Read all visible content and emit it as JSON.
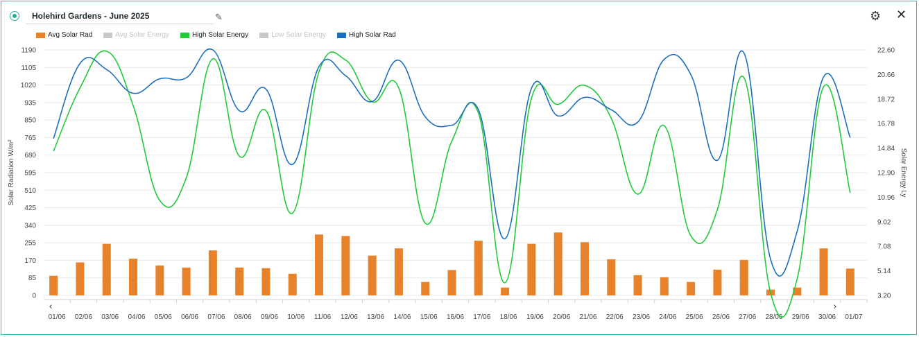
{
  "header": {
    "title": "Holehird Gardens - June 2025"
  },
  "icons": {
    "settings": "gear-icon",
    "close": "close-icon",
    "edit": "pencil-icon"
  },
  "colors": {
    "avg_solar_rad": "#e8822a",
    "high_solar_energy": "#22c93a",
    "high_solar_rad": "#1d6fbd",
    "disabled": "#c8c8c8",
    "frame": "#39b3b1"
  },
  "legend": [
    {
      "label": "Avg Solar Rad",
      "color": "#e8822a",
      "active": true
    },
    {
      "label": "Avg Solar Energy",
      "color": "#c8c8c8",
      "active": false
    },
    {
      "label": "High Solar Energy",
      "color": "#22c93a",
      "active": true
    },
    {
      "label": "Low Solar Energy",
      "color": "#c8c8c8",
      "active": false
    },
    {
      "label": "High Solar Rad",
      "color": "#1d6fbd",
      "active": true
    }
  ],
  "chart_data": {
    "type": "bar",
    "x": [
      "01/06",
      "02/06",
      "03/06",
      "04/06",
      "05/06",
      "06/06",
      "07/06",
      "08/06",
      "09/06",
      "10/06",
      "11/06",
      "12/06",
      "13/06",
      "14/06",
      "15/06",
      "16/06",
      "17/06",
      "18/06",
      "19/06",
      "20/06",
      "21/06",
      "22/06",
      "23/06",
      "24/06",
      "25/06",
      "26/06",
      "27/06",
      "28/06",
      "29/06",
      "30/06",
      "01/07"
    ],
    "ylabel_left": "Solar Radiation W/m²",
    "ylabel_right": "Solar Energy Ly",
    "left_ticks": [
      "0",
      "85",
      "170",
      "255",
      "340",
      "425",
      "510",
      "595",
      "680",
      "765",
      "850",
      "935",
      "1020",
      "1105",
      "1190"
    ],
    "right_ticks": [
      "3.20",
      "5.14",
      "7.08",
      "9.02",
      "10.96",
      "12.90",
      "14.84",
      "16.78",
      "18.72",
      "20.66",
      "22.60"
    ],
    "ylim_left": [
      0,
      1190
    ],
    "ylim_right": [
      3.2,
      22.6
    ],
    "series": [
      {
        "name": "Avg Solar Rad",
        "type": "bar",
        "axis": "left",
        "values": [
          95,
          160,
          250,
          178,
          145,
          135,
          218,
          135,
          132,
          105,
          295,
          288,
          193,
          228,
          65,
          123,
          265,
          38,
          250,
          305,
          258,
          175,
          98,
          88,
          65,
          125,
          172,
          28,
          38,
          228,
          130
        ]
      },
      {
        "name": "High Solar Energy",
        "type": "line",
        "axis": "right",
        "values": [
          14.6,
          19.6,
          22.5,
          18.2,
          10.7,
          12.5,
          21.9,
          14.2,
          17.8,
          9.7,
          20.9,
          21.8,
          18.5,
          19.6,
          8.9,
          15.4,
          17.6,
          4.2,
          18.8,
          18.3,
          19.8,
          17.2,
          11.2,
          16.6,
          7.9,
          10.0,
          20.4,
          3.4,
          4.5,
          19.7,
          11.3
        ]
      },
      {
        "name": "High Solar Rad",
        "type": "line",
        "axis": "left",
        "values": [
          760,
          1125,
          1095,
          980,
          1050,
          1055,
          1190,
          895,
          1000,
          635,
          1110,
          1065,
          940,
          1140,
          865,
          825,
          900,
          275,
          1005,
          870,
          960,
          900,
          840,
          1145,
          1070,
          655,
          1175,
          175,
          310,
          1060,
          765
        ]
      }
    ]
  }
}
